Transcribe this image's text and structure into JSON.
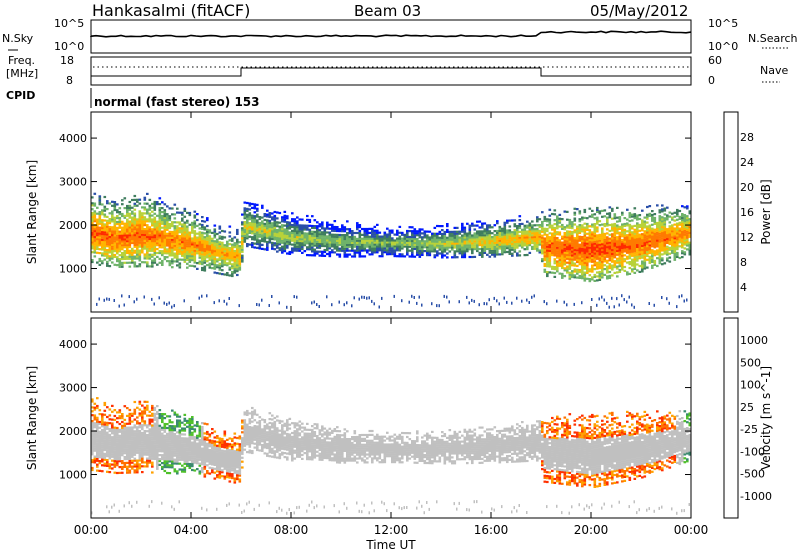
{
  "header": {
    "station": "Hankasalmi (fitACF)",
    "beam": "Beam 03",
    "date": "05/May/2012"
  },
  "noise_panel": {
    "left_label": "N.Sky",
    "right_label": "N.Search",
    "left_ticks": [
      "10^5",
      "10^0"
    ],
    "right_ticks": [
      "10^5",
      "10^0"
    ]
  },
  "freq_panel": {
    "left_label_line1": "Freq.",
    "left_label_line2": "[MHz]",
    "right_label": "Nave",
    "left_ticks": [
      "18",
      "8"
    ],
    "right_ticks": [
      "60",
      "0"
    ]
  },
  "cpid": {
    "label": "CPID",
    "value": "normal (fast stereo) 153"
  },
  "x_axis": {
    "title": "Time UT",
    "ticks": [
      "00:00",
      "04:00",
      "08:00",
      "12:00",
      "16:00",
      "20:00",
      "00:00"
    ],
    "range_hours": [
      0,
      24
    ]
  },
  "colors": {
    "power": [
      "#0018ff",
      "#2a4fa8",
      "#3f7d5e",
      "#6fb36a",
      "#b8d23a",
      "#ffb400",
      "#ff7a00",
      "#ff2a00"
    ],
    "velocity": [
      "#2424c8",
      "#2e6eb4",
      "#3a8a70",
      "#4fc02a",
      "#c0c0c0",
      "#ffa000",
      "#ff7000",
      "#ff3000",
      "#ff0000"
    ]
  },
  "chart_data": [
    {
      "type": "heatmap",
      "title": "Power",
      "ylabel": "Slant Range [km]",
      "yticks": [
        "1000",
        "2000",
        "3000",
        "4000"
      ],
      "ylim": [
        0,
        4600
      ],
      "xlabel": "Time UT",
      "xlim": [
        0,
        24
      ],
      "colorbar": {
        "label": "Power [dB]",
        "ticks": [
          "4",
          "8",
          "12",
          "16",
          "20",
          "24",
          "28"
        ],
        "range": [
          0,
          32
        ]
      },
      "echo_band": {
        "hours": [
          0,
          1,
          2,
          3,
          4,
          5,
          5.9,
          6.1,
          8,
          10,
          12,
          14,
          16,
          17.9,
          18.1,
          20,
          22,
          24
        ],
        "center_km": [
          1850,
          1700,
          1800,
          1700,
          1600,
          1400,
          1300,
          2000,
          1750,
          1650,
          1600,
          1600,
          1650,
          1750,
          1500,
          1450,
          1600,
          1850
        ],
        "half_width_km": [
          450,
          400,
          450,
          400,
          350,
          300,
          300,
          280,
          250,
          220,
          180,
          200,
          220,
          250,
          400,
          450,
          400,
          300
        ],
        "peak_db": [
          28,
          28,
          28,
          26,
          26,
          24,
          24,
          20,
          18,
          16,
          16,
          18,
          22,
          24,
          28,
          30,
          28,
          26
        ]
      }
    },
    {
      "type": "heatmap",
      "title": "Velocity",
      "ylabel": "Slant Range [km]",
      "yticks": [
        "1000",
        "2000",
        "3000",
        "4000"
      ],
      "ylim": [
        0,
        4600
      ],
      "xlabel": "Time UT",
      "xlim": [
        0,
        24
      ],
      "colorbar": {
        "label": "Velocity [m s^-1]",
        "ticks": [
          "1000",
          "500",
          "100",
          "25",
          "-25",
          "-100",
          "-500",
          "-1000"
        ]
      },
      "echo_band": {
        "hours": [
          0,
          1,
          2,
          3,
          4,
          5,
          5.9,
          6.1,
          8,
          10,
          12,
          14,
          16,
          17.9,
          18.1,
          20,
          22,
          24
        ],
        "center_km": [
          1850,
          1700,
          1800,
          1700,
          1600,
          1400,
          1300,
          2000,
          1750,
          1650,
          1600,
          1600,
          1650,
          1750,
          1500,
          1450,
          1600,
          1850
        ],
        "half_width_km": [
          450,
          400,
          450,
          400,
          350,
          300,
          300,
          280,
          250,
          220,
          180,
          200,
          220,
          250,
          400,
          450,
          400,
          300
        ],
        "dominant_velocity": [
          -300,
          -200,
          -250,
          200,
          300,
          -400,
          -400,
          0,
          0,
          0,
          0,
          0,
          0,
          0,
          -300,
          -300,
          -500,
          150
        ]
      }
    }
  ]
}
